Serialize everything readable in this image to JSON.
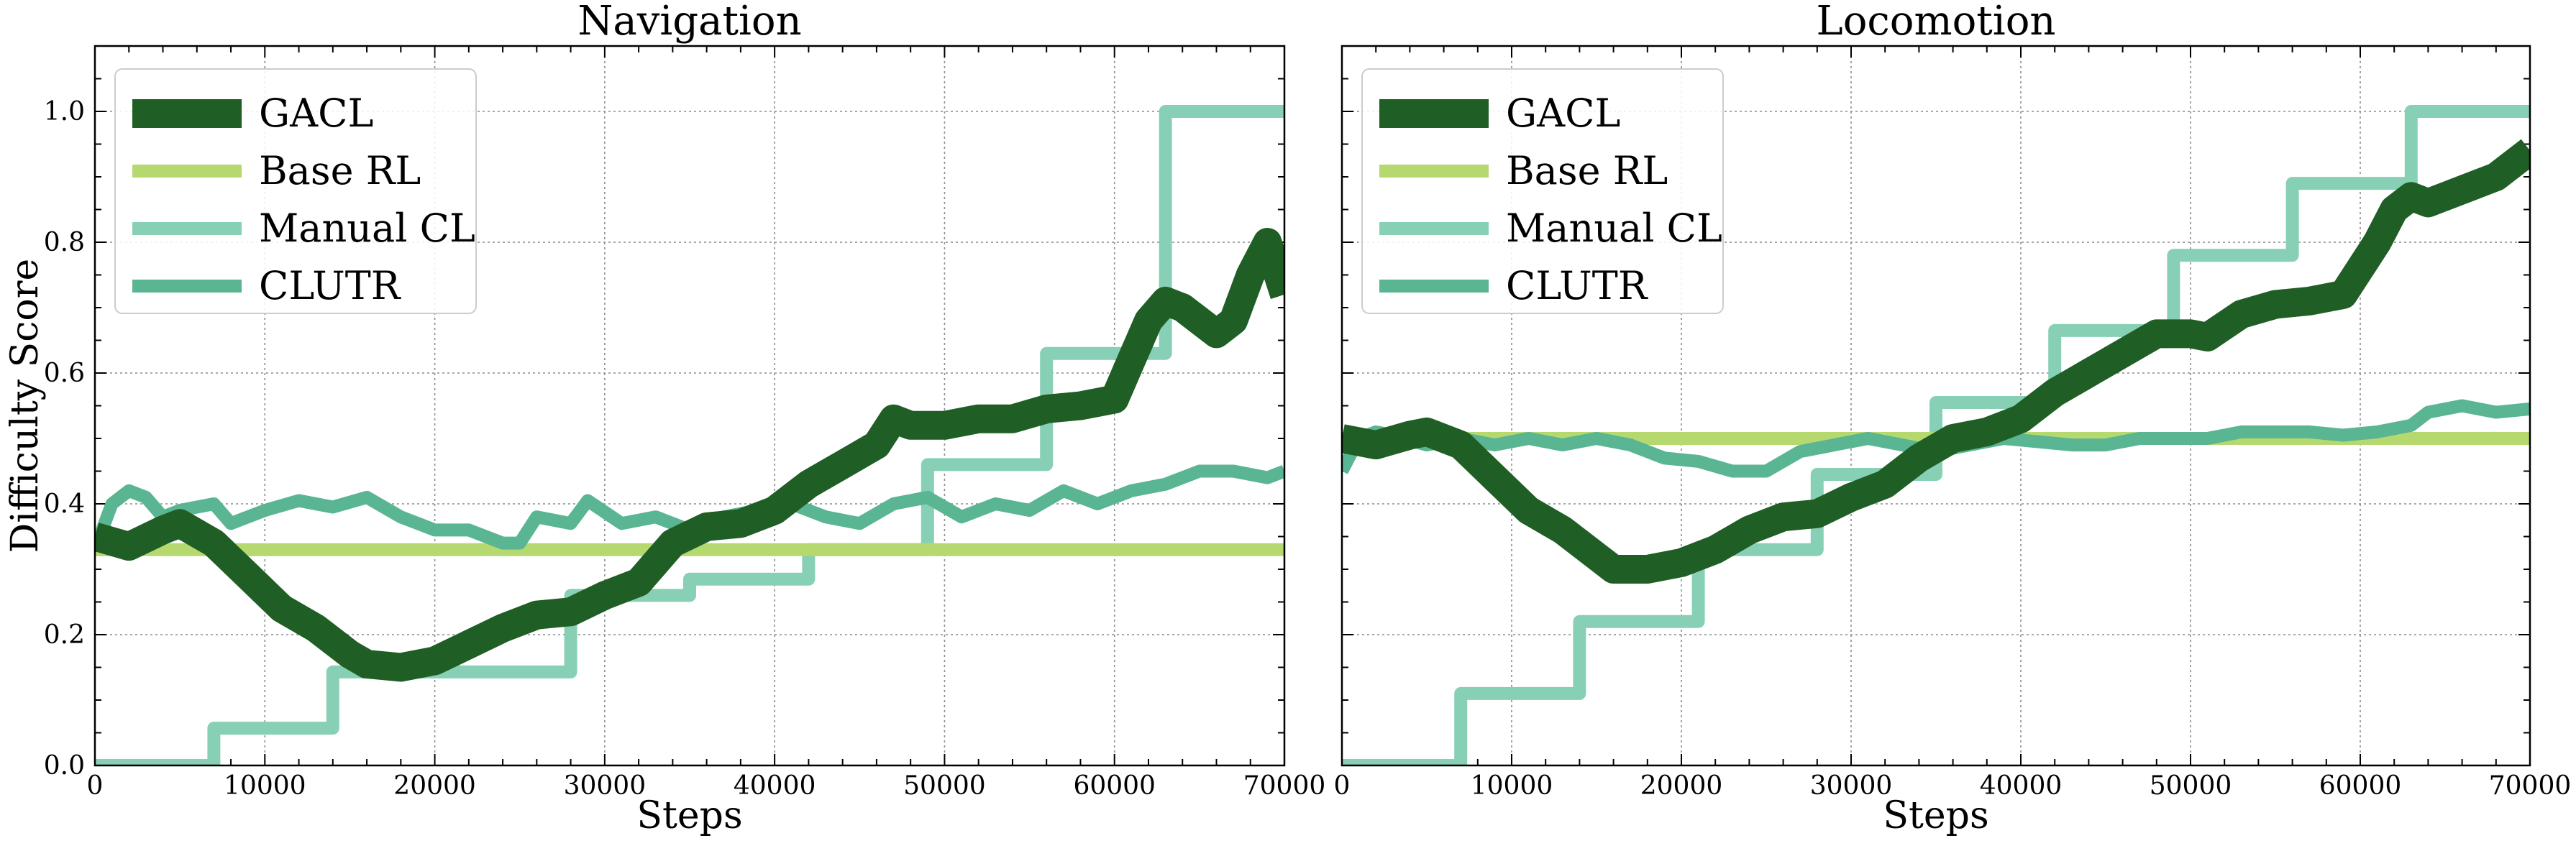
{
  "chart_data": [
    {
      "type": "line",
      "title": "Navigation",
      "xlabel": "Steps",
      "ylabel": "Difficulty Score",
      "xlim": [
        0,
        70000
      ],
      "ylim": [
        0,
        1.1
      ],
      "xticks": [
        "0",
        "10000",
        "20000",
        "30000",
        "40000",
        "50000",
        "60000",
        "70000"
      ],
      "yticks": [
        "0.0",
        "0.2",
        "0.4",
        "0.6",
        "0.8",
        "1.0"
      ],
      "grid": true,
      "legend_position": "top-left",
      "series": [
        {
          "name": "GACL",
          "color": "#1f5e24",
          "values": [
            [
              0,
              0.35
            ],
            [
              2000,
              0.335
            ],
            [
              4000,
              0.36
            ],
            [
              5000,
              0.37
            ],
            [
              7000,
              0.34
            ],
            [
              9000,
              0.29
            ],
            [
              11000,
              0.24
            ],
            [
              13000,
              0.21
            ],
            [
              15000,
              0.17
            ],
            [
              16000,
              0.155
            ],
            [
              18000,
              0.15
            ],
            [
              20000,
              0.16
            ],
            [
              22000,
              0.185
            ],
            [
              24000,
              0.21
            ],
            [
              26000,
              0.23
            ],
            [
              28000,
              0.235
            ],
            [
              30000,
              0.26
            ],
            [
              32000,
              0.28
            ],
            [
              34000,
              0.34
            ],
            [
              36000,
              0.365
            ],
            [
              38000,
              0.37
            ],
            [
              40000,
              0.39
            ],
            [
              42000,
              0.43
            ],
            [
              44000,
              0.46
            ],
            [
              46000,
              0.49
            ],
            [
              47000,
              0.53
            ],
            [
              48000,
              0.52
            ],
            [
              50000,
              0.52
            ],
            [
              52000,
              0.53
            ],
            [
              54000,
              0.53
            ],
            [
              56000,
              0.545
            ],
            [
              58000,
              0.55
            ],
            [
              60000,
              0.56
            ],
            [
              61000,
              0.62
            ],
            [
              62000,
              0.68
            ],
            [
              63000,
              0.71
            ],
            [
              64000,
              0.7
            ],
            [
              66000,
              0.66
            ],
            [
              67000,
              0.68
            ],
            [
              68000,
              0.75
            ],
            [
              69000,
              0.8
            ],
            [
              70000,
              0.72
            ]
          ]
        },
        {
          "name": "Base RL",
          "color": "#b5d96f",
          "values": [
            [
              0,
              0.33
            ],
            [
              70000,
              0.33
            ]
          ]
        },
        {
          "name": "Manual CL",
          "color": "#88d0b5",
          "values": [
            [
              0,
              0
            ],
            [
              7000,
              0
            ],
            [
              7000,
              0.057
            ],
            [
              14000,
              0.057
            ],
            [
              14000,
              0.143
            ],
            [
              28000,
              0.143
            ],
            [
              28000,
              0.2
            ],
            [
              28000,
              0.26
            ],
            [
              35000,
              0.26
            ],
            [
              35000,
              0.285
            ],
            [
              42000,
              0.285
            ],
            [
              42000,
              0.33
            ],
            [
              49000,
              0.33
            ],
            [
              49000,
              0.46
            ],
            [
              56000,
              0.46
            ],
            [
              56000,
              0.63
            ],
            [
              63000,
              0.63
            ],
            [
              63000,
              1.0
            ],
            [
              70000,
              1.0
            ]
          ]
        },
        {
          "name": "CLUTR",
          "color": "#5ab593",
          "values": [
            [
              0,
              0.33
            ],
            [
              1000,
              0.4
            ],
            [
              2000,
              0.42
            ],
            [
              3000,
              0.41
            ],
            [
              4000,
              0.38
            ],
            [
              5000,
              0.39
            ],
            [
              7000,
              0.4
            ],
            [
              8000,
              0.37
            ],
            [
              10000,
              0.39
            ],
            [
              12000,
              0.405
            ],
            [
              14000,
              0.395
            ],
            [
              16000,
              0.41
            ],
            [
              18000,
              0.38
            ],
            [
              20000,
              0.36
            ],
            [
              22000,
              0.36
            ],
            [
              24000,
              0.34
            ],
            [
              25000,
              0.34
            ],
            [
              26000,
              0.38
            ],
            [
              28000,
              0.37
            ],
            [
              29000,
              0.405
            ],
            [
              31000,
              0.37
            ],
            [
              33000,
              0.38
            ],
            [
              35000,
              0.36
            ],
            [
              37000,
              0.38
            ],
            [
              39000,
              0.39
            ],
            [
              41000,
              0.4
            ],
            [
              43000,
              0.38
            ],
            [
              45000,
              0.37
            ],
            [
              47000,
              0.4
            ],
            [
              49000,
              0.41
            ],
            [
              51000,
              0.38
            ],
            [
              53000,
              0.4
            ],
            [
              55000,
              0.39
            ],
            [
              57000,
              0.42
            ],
            [
              59000,
              0.4
            ],
            [
              61000,
              0.42
            ],
            [
              63000,
              0.43
            ],
            [
              65000,
              0.45
            ],
            [
              67000,
              0.45
            ],
            [
              69000,
              0.44
            ],
            [
              70000,
              0.45
            ]
          ]
        }
      ]
    },
    {
      "type": "line",
      "title": "Locomotion",
      "xlabel": "Steps",
      "ylabel": "",
      "xlim": [
        0,
        70000
      ],
      "ylim": [
        0,
        1.1
      ],
      "xticks": [
        "0",
        "10000",
        "20000",
        "30000",
        "40000",
        "50000",
        "60000",
        "70000"
      ],
      "yticks": [],
      "grid": true,
      "legend_position": "top-left",
      "series": [
        {
          "name": "GACL",
          "color": "#1f5e24",
          "values": [
            [
              0,
              0.5
            ],
            [
              2000,
              0.49
            ],
            [
              4000,
              0.505
            ],
            [
              5000,
              0.51
            ],
            [
              7000,
              0.49
            ],
            [
              9000,
              0.44
            ],
            [
              11000,
              0.39
            ],
            [
              13000,
              0.36
            ],
            [
              15000,
              0.32
            ],
            [
              16000,
              0.3
            ],
            [
              18000,
              0.3
            ],
            [
              20000,
              0.31
            ],
            [
              22000,
              0.33
            ],
            [
              24000,
              0.36
            ],
            [
              26000,
              0.38
            ],
            [
              28000,
              0.385
            ],
            [
              30000,
              0.41
            ],
            [
              32000,
              0.43
            ],
            [
              34000,
              0.47
            ],
            [
              36000,
              0.5
            ],
            [
              38000,
              0.51
            ],
            [
              40000,
              0.53
            ],
            [
              42000,
              0.57
            ],
            [
              44000,
              0.6
            ],
            [
              46000,
              0.63
            ],
            [
              48000,
              0.66
            ],
            [
              50000,
              0.66
            ],
            [
              51000,
              0.655
            ],
            [
              53000,
              0.69
            ],
            [
              55000,
              0.705
            ],
            [
              57000,
              0.71
            ],
            [
              59000,
              0.72
            ],
            [
              61000,
              0.8
            ],
            [
              62000,
              0.85
            ],
            [
              63000,
              0.87
            ],
            [
              64000,
              0.86
            ],
            [
              66000,
              0.88
            ],
            [
              68000,
              0.9
            ],
            [
              70000,
              0.94
            ]
          ]
        },
        {
          "name": "Base RL",
          "color": "#b5d96f",
          "values": [
            [
              0,
              0.5
            ],
            [
              70000,
              0.5
            ]
          ]
        },
        {
          "name": "Manual CL",
          "color": "#88d0b5",
          "values": [
            [
              0,
              0
            ],
            [
              7000,
              0
            ],
            [
              7000,
              0.11
            ],
            [
              14000,
              0.11
            ],
            [
              14000,
              0.22
            ],
            [
              21000,
              0.22
            ],
            [
              21000,
              0.33
            ],
            [
              28000,
              0.33
            ],
            [
              28000,
              0.445
            ],
            [
              35000,
              0.445
            ],
            [
              35000,
              0.555
            ],
            [
              42000,
              0.555
            ],
            [
              42000,
              0.665
            ],
            [
              49000,
              0.665
            ],
            [
              49000,
              0.78
            ],
            [
              56000,
              0.78
            ],
            [
              56000,
              0.89
            ],
            [
              63000,
              0.89
            ],
            [
              63000,
              1.0
            ],
            [
              70000,
              1.0
            ]
          ]
        },
        {
          "name": "CLUTR",
          "color": "#5ab593",
          "values": [
            [
              0,
              0.45
            ],
            [
              1000,
              0.5
            ],
            [
              2000,
              0.51
            ],
            [
              3000,
              0.505
            ],
            [
              5000,
              0.49
            ],
            [
              7000,
              0.5
            ],
            [
              9000,
              0.49
            ],
            [
              11000,
              0.5
            ],
            [
              13000,
              0.49
            ],
            [
              15000,
              0.5
            ],
            [
              17000,
              0.49
            ],
            [
              19000,
              0.47
            ],
            [
              21000,
              0.465
            ],
            [
              23000,
              0.45
            ],
            [
              25000,
              0.45
            ],
            [
              27000,
              0.48
            ],
            [
              29000,
              0.49
            ],
            [
              31000,
              0.5
            ],
            [
              33000,
              0.49
            ],
            [
              35000,
              0.48
            ],
            [
              37000,
              0.49
            ],
            [
              39000,
              0.5
            ],
            [
              41000,
              0.495
            ],
            [
              43000,
              0.49
            ],
            [
              45000,
              0.49
            ],
            [
              47000,
              0.5
            ],
            [
              49000,
              0.5
            ],
            [
              51000,
              0.5
            ],
            [
              53000,
              0.51
            ],
            [
              55000,
              0.51
            ],
            [
              57000,
              0.51
            ],
            [
              59000,
              0.505
            ],
            [
              61000,
              0.51
            ],
            [
              63000,
              0.52
            ],
            [
              64000,
              0.54
            ],
            [
              66000,
              0.55
            ],
            [
              68000,
              0.54
            ],
            [
              70000,
              0.545
            ]
          ]
        }
      ]
    }
  ]
}
